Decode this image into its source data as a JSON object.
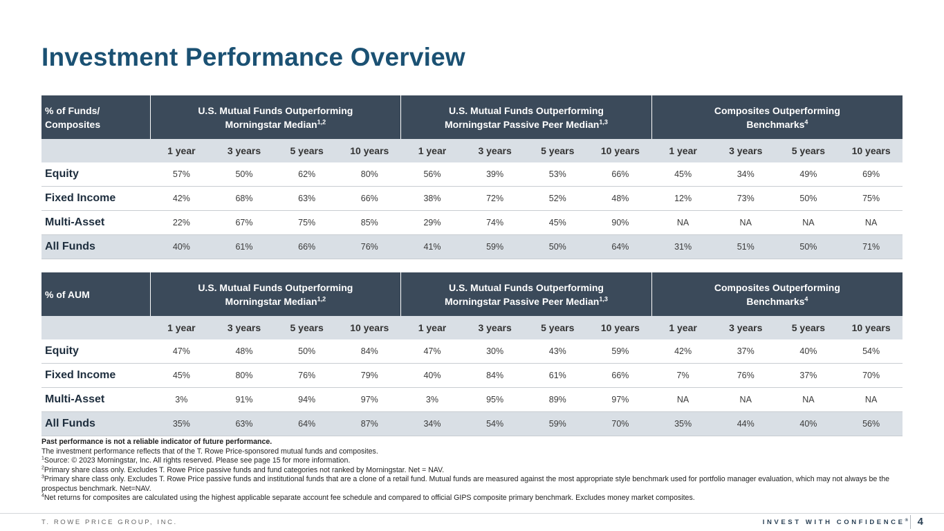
{
  "title": "Investment Performance Overview",
  "periods": [
    "1 year",
    "3 years",
    "5 years",
    "10 years"
  ],
  "group_headers": [
    {
      "line1": "U.S. Mutual Funds Outperforming",
      "line2": "Morningstar Median",
      "sup": "1,2"
    },
    {
      "line1": "U.S. Mutual Funds Outperforming",
      "line2": "Morningstar Passive Peer Median",
      "sup": "1,3"
    },
    {
      "line1": "Composites Outperforming",
      "line2": "Benchmarks",
      "sup": "4"
    }
  ],
  "table_funds": {
    "label_line1": "% of Funds/",
    "label_line2": "Composites",
    "rows": [
      {
        "label": "Equity",
        "values": [
          "57%",
          "50%",
          "62%",
          "80%",
          "56%",
          "39%",
          "53%",
          "66%",
          "45%",
          "34%",
          "49%",
          "69%"
        ]
      },
      {
        "label": "Fixed Income",
        "values": [
          "42%",
          "68%",
          "63%",
          "66%",
          "38%",
          "72%",
          "52%",
          "48%",
          "12%",
          "73%",
          "50%",
          "75%"
        ]
      },
      {
        "label": "Multi-Asset",
        "values": [
          "22%",
          "67%",
          "75%",
          "85%",
          "29%",
          "74%",
          "45%",
          "90%",
          "NA",
          "NA",
          "NA",
          "NA"
        ]
      },
      {
        "label": "All Funds",
        "values": [
          "40%",
          "61%",
          "66%",
          "76%",
          "41%",
          "59%",
          "50%",
          "64%",
          "31%",
          "51%",
          "50%",
          "71%"
        ]
      }
    ]
  },
  "table_aum": {
    "label_line1": "% of AUM",
    "label_line2": "",
    "rows": [
      {
        "label": "Equity",
        "values": [
          "47%",
          "48%",
          "50%",
          "84%",
          "47%",
          "30%",
          "43%",
          "59%",
          "42%",
          "37%",
          "40%",
          "54%"
        ]
      },
      {
        "label": "Fixed Income",
        "values": [
          "45%",
          "80%",
          "76%",
          "79%",
          "40%",
          "84%",
          "61%",
          "66%",
          "7%",
          "76%",
          "37%",
          "70%"
        ]
      },
      {
        "label": "Multi-Asset",
        "values": [
          "3%",
          "91%",
          "94%",
          "97%",
          "3%",
          "95%",
          "89%",
          "97%",
          "NA",
          "NA",
          "NA",
          "NA"
        ]
      },
      {
        "label": "All Funds",
        "values": [
          "35%",
          "63%",
          "64%",
          "87%",
          "34%",
          "54%",
          "59%",
          "70%",
          "35%",
          "44%",
          "40%",
          "56%"
        ]
      }
    ]
  },
  "footnotes": {
    "disclaimer": "Past performance is not a reliable indicator of future performance.",
    "intro": "The investment performance reflects that of the T. Rowe Price-sponsored mutual funds and composites.",
    "notes": [
      {
        "num": "1",
        "text": "Source: © 2023 Morningstar, Inc. All rights reserved. Please see page 15 for more information."
      },
      {
        "num": "2",
        "text": "Primary share class only. Excludes T. Rowe Price passive funds and fund categories not ranked by Morningstar. Net = NAV."
      },
      {
        "num": "3",
        "text": "Primary share class only. Excludes T. Rowe Price passive funds and institutional funds that are a clone of a retail fund. Mutual funds are measured against the most appropriate style benchmark used for portfolio manager evaluation, which may not always be the prospectus benchmark. Net=NAV."
      },
      {
        "num": "4",
        "text": "Net returns for composites are calculated using the highest applicable separate account fee schedule and compared to official GIPS composite primary benchmark. Excludes money market composites."
      }
    ]
  },
  "footer": {
    "company": "T. ROWE PRICE GROUP, INC.",
    "tagline": "INVEST WITH CONFIDENCE",
    "tagline_mark": "®",
    "page": "4"
  },
  "colors": {
    "title": "#1b5173",
    "header_bg": "#3b4a5a",
    "subheader_bg": "#d9dfe5",
    "row_border": "#c7ccd1"
  }
}
